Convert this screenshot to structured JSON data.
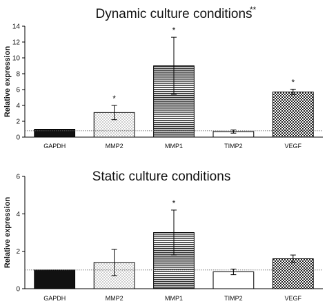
{
  "chart_data": [
    {
      "type": "bar",
      "title": "Dynamic culture conditions",
      "title_mark": "**",
      "ylabel": "Relative expression",
      "xlabel": "",
      "ylim": [
        0,
        14
      ],
      "yticks": [
        0,
        2,
        4,
        6,
        8,
        10,
        12,
        14
      ],
      "categories": [
        "GAPDH",
        "MMP2",
        "MMP1",
        "TIMP2",
        "VEGF"
      ],
      "values": [
        1.0,
        3.1,
        9.0,
        0.7,
        5.7
      ],
      "errors": [
        0,
        0.9,
        3.6,
        0.2,
        0.35
      ],
      "significance": [
        "",
        "*",
        "*",
        "",
        "*"
      ],
      "reference_line": 0.8,
      "patterns": [
        "solid",
        "dots",
        "horizontal-lines",
        "none",
        "crosshatch"
      ]
    },
    {
      "type": "bar",
      "title": "Static culture conditions",
      "ylabel": "Relative expression",
      "xlabel": "",
      "ylim": [
        0,
        6
      ],
      "yticks": [
        0,
        2,
        4,
        6
      ],
      "categories": [
        "GAPDH",
        "MMP2",
        "MMP1",
        "TIMP2",
        "VEGF"
      ],
      "values": [
        1.0,
        1.4,
        3.0,
        0.9,
        1.6
      ],
      "errors": [
        0,
        0.7,
        1.2,
        0.15,
        0.2
      ],
      "significance": [
        "",
        "",
        "*",
        "",
        ""
      ],
      "reference_line": 1.0,
      "patterns": [
        "solid",
        "dots",
        "horizontal-lines",
        "none",
        "crosshatch"
      ]
    }
  ]
}
